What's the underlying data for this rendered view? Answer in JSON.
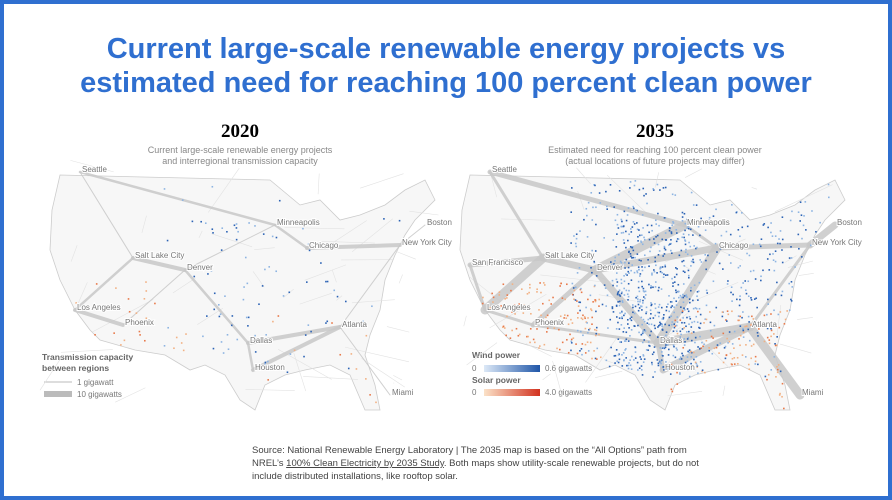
{
  "header": {
    "title_lines": [
      "Current large-scale renewable energy projects vs",
      "estimated need for reaching 100 percent clean power"
    ]
  },
  "panels": [
    {
      "year": "2020",
      "subtitle": [
        "Current large-scale renewable energy projects",
        "and interregional transmission capacity"
      ],
      "cities": [
        "Seattle",
        "Minneapolis",
        "Boston",
        "Chicago",
        "New York City",
        "Salt Lake City",
        "Denver",
        "Los Angeles",
        "Phoenix",
        "Atlanta",
        "Dallas",
        "Houston",
        "Miami"
      ],
      "legend": {
        "title_lines": [
          "Transmission capacity",
          "between regions"
        ],
        "items": [
          "1 gigawatt",
          "10 gigawatts"
        ]
      }
    },
    {
      "year": "2035",
      "subtitle": [
        "Estimated need for reaching 100 percent clean power",
        "(actual locations of future projects may differ)"
      ],
      "cities": [
        "Seattle",
        "Minneapolis",
        "Boston",
        "Chicago",
        "New York City",
        "San Francisco",
        "Salt Lake City",
        "Denver",
        "Los Angeles",
        "Phoenix",
        "Atlanta",
        "Dallas",
        "Houston",
        "Miami"
      ],
      "legend": {
        "wind": {
          "title": "Wind power",
          "min": "0",
          "max": "0.6 gigawatts"
        },
        "solar": {
          "title": "Solar power",
          "min": "0",
          "max": "4.0 gigawatts"
        }
      }
    }
  ],
  "source": {
    "before": "Source: National Renewable Energy Laboratory | The 2035 map is based on the “All Options” path from NREL’s ",
    "link": "100% Clean Electricity by 2035 Study",
    "after": ". Both maps show utility-scale renewable projects, but do not include distributed installations, like rooftop solar."
  }
}
